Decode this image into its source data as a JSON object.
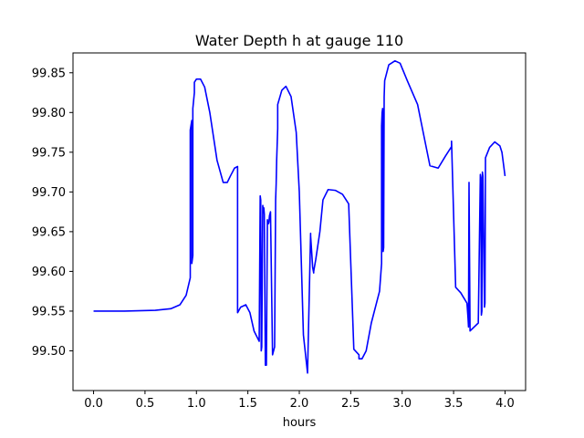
{
  "chart_data": {
    "type": "line",
    "title": "Water Depth h at gauge 110",
    "xlabel": "hours",
    "ylabel": "",
    "xlim": [
      -0.2,
      4.2
    ],
    "ylim": [
      99.45,
      99.875
    ],
    "xticks": [
      0.0,
      0.5,
      1.0,
      1.5,
      2.0,
      2.5,
      3.0,
      3.5,
      4.0
    ],
    "xtick_labels": [
      "0.0",
      "0.5",
      "1.0",
      "1.5",
      "2.0",
      "2.5",
      "3.0",
      "3.5",
      "4.0"
    ],
    "yticks": [
      99.5,
      99.55,
      99.6,
      99.65,
      99.7,
      99.75,
      99.8,
      99.85
    ],
    "ytick_labels": [
      "99.50",
      "99.55",
      "99.60",
      "99.65",
      "99.70",
      "99.75",
      "99.80",
      "99.85"
    ],
    "grid": false,
    "series": [
      {
        "color": "#0000ff",
        "x": [
          0.0,
          0.3,
          0.6,
          0.75,
          0.84,
          0.9,
          0.94,
          0.94,
          0.955,
          0.955,
          0.965,
          0.965,
          0.98,
          0.98,
          1.0,
          1.04,
          1.08,
          1.13,
          1.2,
          1.26,
          1.3,
          1.33,
          1.37,
          1.4,
          1.4,
          1.43,
          1.48,
          1.52,
          1.56,
          1.61,
          1.62,
          1.625,
          1.63,
          1.635,
          1.645,
          1.65,
          1.655,
          1.66,
          1.67,
          1.68,
          1.69,
          1.695,
          1.7,
          1.705,
          1.71,
          1.72,
          1.74,
          1.76,
          1.77,
          1.775,
          1.78,
          1.79,
          1.79,
          1.83,
          1.87,
          1.92,
          1.97,
          2.0,
          2.04,
          2.08,
          2.11,
          2.11,
          2.12,
          2.13,
          2.14,
          2.14,
          2.16,
          2.2,
          2.23,
          2.28,
          2.35,
          2.42,
          2.48,
          2.53,
          2.58,
          2.58,
          2.61,
          2.65,
          2.7,
          2.78,
          2.8,
          2.8,
          2.805,
          2.81,
          2.815,
          2.82,
          2.825,
          2.83,
          2.87,
          2.93,
          2.98,
          3.05,
          3.15,
          3.22,
          3.27,
          3.35,
          3.42,
          3.48,
          3.48,
          3.52,
          3.57,
          3.63,
          3.64,
          3.645,
          3.65,
          3.65,
          3.66,
          3.7,
          3.74,
          3.76,
          3.765,
          3.77,
          3.775,
          3.78,
          3.785,
          3.8,
          3.805,
          3.81,
          3.85,
          3.9,
          3.95,
          3.97,
          4.0
        ],
        "y": [
          99.55,
          99.55,
          99.551,
          99.553,
          99.558,
          99.57,
          99.592,
          99.778,
          99.79,
          99.61,
          99.62,
          99.805,
          99.825,
          99.838,
          99.842,
          99.842,
          99.832,
          99.8,
          99.74,
          99.712,
          99.712,
          99.72,
          99.73,
          99.732,
          99.548,
          99.555,
          99.558,
          99.548,
          99.525,
          99.512,
          99.695,
          99.69,
          99.5,
          99.505,
          99.683,
          99.675,
          99.68,
          99.672,
          99.482,
          99.482,
          99.665,
          99.66,
          99.66,
          99.662,
          99.67,
          99.675,
          99.495,
          99.505,
          99.69,
          99.71,
          99.74,
          99.78,
          99.81,
          99.828,
          99.833,
          99.82,
          99.775,
          99.7,
          99.52,
          99.472,
          99.648,
          99.645,
          99.625,
          99.605,
          99.598,
          99.6,
          99.615,
          99.65,
          99.69,
          99.703,
          99.702,
          99.697,
          99.685,
          99.502,
          99.495,
          99.49,
          99.49,
          99.5,
          99.535,
          99.575,
          99.61,
          99.783,
          99.8,
          99.805,
          99.625,
          99.63,
          99.82,
          99.84,
          99.86,
          99.865,
          99.862,
          99.84,
          99.81,
          99.765,
          99.733,
          99.73,
          99.745,
          99.757,
          99.764,
          99.58,
          99.573,
          99.56,
          99.542,
          99.53,
          99.712,
          99.71,
          99.525,
          99.53,
          99.535,
          99.722,
          99.718,
          99.545,
          99.55,
          99.725,
          99.72,
          99.555,
          99.56,
          99.743,
          99.756,
          99.763,
          99.758,
          99.75,
          99.72
        ]
      }
    ]
  }
}
